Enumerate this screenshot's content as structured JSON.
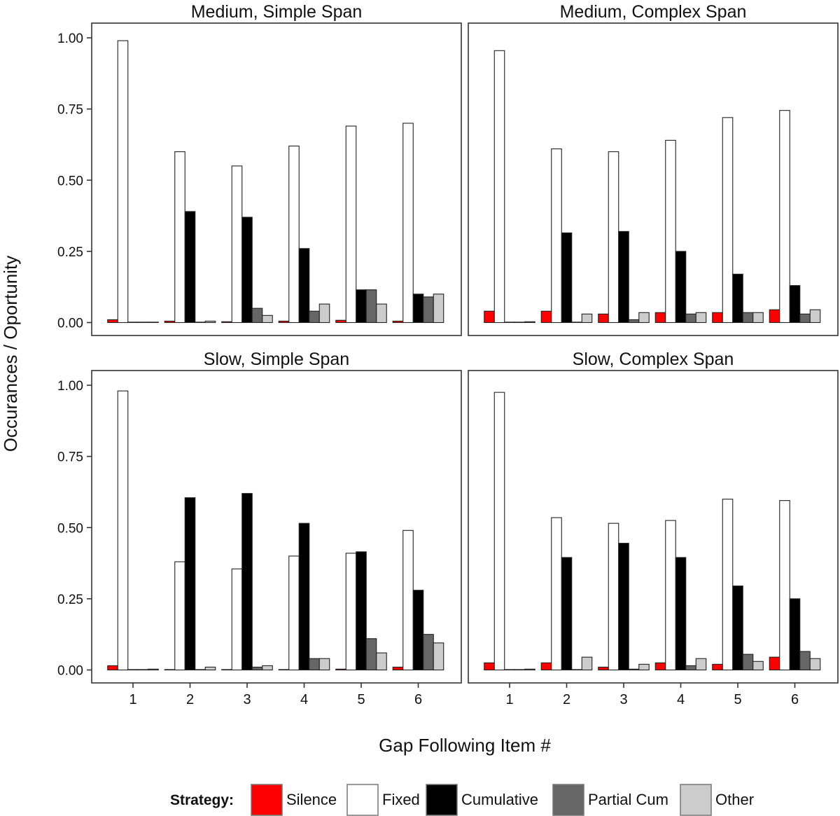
{
  "chart_data": {
    "type": "bar",
    "layout": "2x2 facet grid",
    "ylabel": "Occurances / Oportunity",
    "xlabel": "Gap Following Item #",
    "categories": [
      "1",
      "2",
      "3",
      "4",
      "5",
      "6"
    ],
    "ylim": [
      0,
      1.04
    ],
    "yticks": [
      0,
      0.25,
      0.5,
      0.75,
      1.0
    ],
    "ytick_labels": [
      "0.00",
      "0.25",
      "0.50",
      "0.75",
      "1.00"
    ],
    "grid": false,
    "legend": {
      "title": "Strategy:",
      "placement": "bottom",
      "items": [
        {
          "name": "Silence",
          "color": "#ff0000"
        },
        {
          "name": "Fixed",
          "color": "#ffffff"
        },
        {
          "name": "Cumulative",
          "color": "#000000"
        },
        {
          "name": "Partial Cum",
          "color": "#666666"
        },
        {
          "name": "Other",
          "color": "#cccccc"
        }
      ]
    },
    "panels": [
      {
        "title": "Medium, Simple Span",
        "series": [
          {
            "name": "Silence",
            "values": [
              0.01,
              0.005,
              0.003,
              0.005,
              0.008,
              0.005
            ]
          },
          {
            "name": "Fixed",
            "values": [
              0.99,
              0.6,
              0.55,
              0.62,
              0.69,
              0.7
            ]
          },
          {
            "name": "Cumulative",
            "values": [
              0.0,
              0.39,
              0.37,
              0.26,
              0.115,
              0.1
            ]
          },
          {
            "name": "Partial Cum",
            "values": [
              0.0,
              0.0,
              0.05,
              0.04,
              0.115,
              0.09
            ]
          },
          {
            "name": "Other",
            "values": [
              0.0,
              0.005,
              0.025,
              0.065,
              0.065,
              0.1
            ]
          }
        ]
      },
      {
        "title": "Medium, Complex Span",
        "series": [
          {
            "name": "Silence",
            "values": [
              0.04,
              0.04,
              0.03,
              0.035,
              0.035,
              0.045
            ]
          },
          {
            "name": "Fixed",
            "values": [
              0.955,
              0.61,
              0.6,
              0.64,
              0.72,
              0.745
            ]
          },
          {
            "name": "Cumulative",
            "values": [
              0.0,
              0.315,
              0.32,
              0.25,
              0.17,
              0.13
            ]
          },
          {
            "name": "Partial Cum",
            "values": [
              0.0,
              0.0,
              0.01,
              0.03,
              0.035,
              0.03
            ]
          },
          {
            "name": "Other",
            "values": [
              0.003,
              0.03,
              0.035,
              0.035,
              0.035,
              0.045
            ]
          }
        ]
      },
      {
        "title": "Slow, Simple Span",
        "series": [
          {
            "name": "Silence",
            "values": [
              0.015,
              0.0,
              0.0,
              0.0,
              0.003,
              0.01
            ]
          },
          {
            "name": "Fixed",
            "values": [
              0.98,
              0.38,
              0.355,
              0.4,
              0.41,
              0.49
            ]
          },
          {
            "name": "Cumulative",
            "values": [
              0.0,
              0.605,
              0.62,
              0.515,
              0.415,
              0.28
            ]
          },
          {
            "name": "Partial Cum",
            "values": [
              0.0,
              0.0,
              0.01,
              0.04,
              0.11,
              0.125
            ]
          },
          {
            "name": "Other",
            "values": [
              0.003,
              0.01,
              0.015,
              0.04,
              0.06,
              0.095
            ]
          }
        ]
      },
      {
        "title": "Slow, Complex Span",
        "series": [
          {
            "name": "Silence",
            "values": [
              0.025,
              0.025,
              0.01,
              0.025,
              0.02,
              0.045
            ]
          },
          {
            "name": "Fixed",
            "values": [
              0.975,
              0.535,
              0.515,
              0.525,
              0.6,
              0.595
            ]
          },
          {
            "name": "Cumulative",
            "values": [
              0.0,
              0.395,
              0.445,
              0.395,
              0.295,
              0.25
            ]
          },
          {
            "name": "Partial Cum",
            "values": [
              0.0,
              0.0,
              0.003,
              0.015,
              0.055,
              0.065
            ]
          },
          {
            "name": "Other",
            "values": [
              0.003,
              0.045,
              0.02,
              0.04,
              0.03,
              0.04
            ]
          }
        ]
      }
    ]
  }
}
